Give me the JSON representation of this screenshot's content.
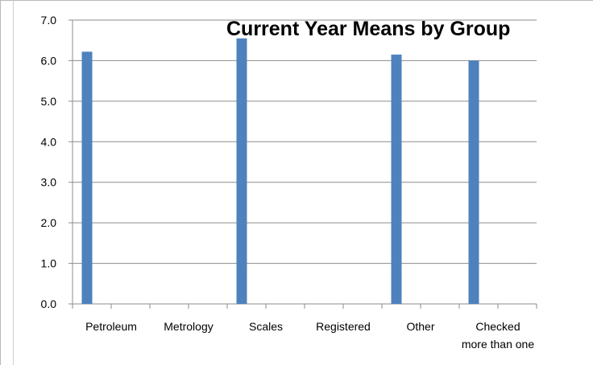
{
  "chart_data": {
    "type": "bar",
    "title": "Current Year Means by Group",
    "xlabel": "",
    "ylabel": "",
    "ylim": [
      0,
      7
    ],
    "grid": true,
    "legend": "none",
    "categories": [
      "Petroleum",
      "Metrology",
      "Scales",
      "Registered",
      "Other",
      "Checked more than one"
    ],
    "category_lines": [
      [
        "Petroleum"
      ],
      [
        "Metrology"
      ],
      [
        "Scales"
      ],
      [
        "Registered"
      ],
      [
        "Other"
      ],
      [
        "Checked",
        "more than one"
      ]
    ],
    "yticks": [
      "0.0",
      "1.0",
      "2.0",
      "3.0",
      "4.0",
      "5.0",
      "6.0",
      "7.0"
    ],
    "series": [
      {
        "values": [
          6.22,
          null,
          6.55,
          null,
          6.15,
          6.0
        ],
        "color": "#4f81bd"
      }
    ]
  }
}
